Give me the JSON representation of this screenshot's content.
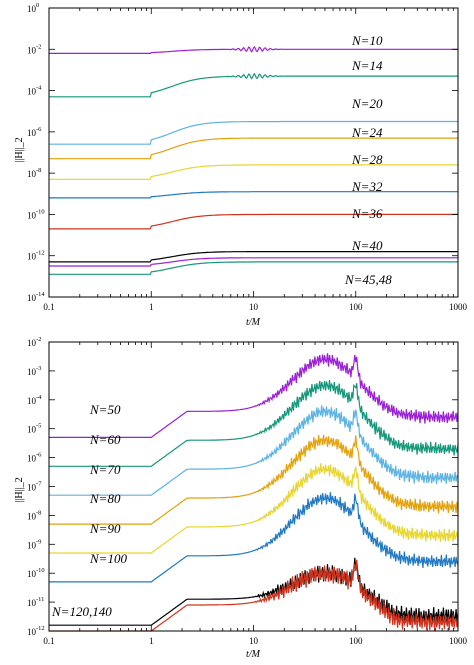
{
  "chart_data": [
    {
      "type": "line",
      "panel": "top",
      "xlabel": "t/M",
      "ylabel": "||H||_2",
      "x_scale": "log",
      "y_scale": "log",
      "xlim": [
        0.1,
        1000
      ],
      "ylim_exponent": [
        -14,
        0
      ],
      "x_ticks": [
        {
          "v": 0.1,
          "label": "0.1"
        },
        {
          "v": 1,
          "label": "1"
        },
        {
          "v": 10,
          "label": "10"
        },
        {
          "v": 100,
          "label": "100"
        },
        {
          "v": 1000,
          "label": "1000"
        }
      ],
      "y_tick_exponents": [
        0,
        -2,
        -4,
        -6,
        -8,
        -10,
        -12,
        -14
      ],
      "y_tick_base": "10",
      "series": [
        {
          "name": "N=10",
          "color": "#9b1fd6",
          "plateau_exp": -2.2,
          "final_exp": -2.0,
          "ripple": true
        },
        {
          "name": "N=14",
          "color": "#14967a",
          "plateau_exp": -4.3,
          "final_exp": -3.3,
          "ripple": true
        },
        {
          "name": "N=20",
          "color": "#5cb3e3",
          "plateau_exp": -6.6,
          "final_exp": -5.5,
          "ripple": false
        },
        {
          "name": "N=24",
          "color": "#e3a10c",
          "plateau_exp": -7.3,
          "final_exp": -6.3,
          "ripple": false
        },
        {
          "name": "N=28",
          "color": "#e8d531",
          "plateau_exp": -8.3,
          "final_exp": -7.6,
          "ripple": false
        },
        {
          "name": "N=32",
          "color": "#1f78c4",
          "plateau_exp": -9.2,
          "final_exp": -8.9,
          "ripple": false
        },
        {
          "name": "N=36",
          "color": "#d0331d",
          "plateau_exp": -10.7,
          "final_exp": -10.0,
          "ripple": false
        },
        {
          "name": "N=40",
          "color": "#000000",
          "plateau_exp": -12.3,
          "final_exp": -11.8,
          "ripple": false
        },
        {
          "name": "N=45",
          "color": "#9b1fd6",
          "plateau_exp": -12.5,
          "final_exp": -12.1,
          "ripple": false
        },
        {
          "name": "N=48",
          "color": "#14967a",
          "plateau_exp": -12.9,
          "final_exp": -12.3,
          "ripple": false
        }
      ],
      "annotations": [
        "N=10",
        "N=14",
        "N=20",
        "N=24",
        "N=28",
        "N=32",
        "N=36",
        "N=40",
        "N=45,48"
      ]
    },
    {
      "type": "line",
      "panel": "bottom",
      "xlabel": "t/M",
      "ylabel": "||H||_2",
      "x_scale": "log",
      "y_scale": "log",
      "xlim": [
        0.1,
        1000
      ],
      "ylim_exponent": [
        -12,
        -2
      ],
      "x_ticks": [
        {
          "v": 0.1,
          "label": "0.1"
        },
        {
          "v": 1,
          "label": "1"
        },
        {
          "v": 10,
          "label": "10"
        },
        {
          "v": 100,
          "label": "100"
        },
        {
          "v": 1000,
          "label": "1000"
        }
      ],
      "y_tick_exponents": [
        -2,
        -3,
        -4,
        -5,
        -6,
        -7,
        -8,
        -9,
        -10,
        -11,
        -12
      ],
      "y_tick_base": "10",
      "series": [
        {
          "name": "N=50",
          "color": "#9b1fd6",
          "plateau_exp": -5.3,
          "peak_exp": -2.6,
          "final_exp": -3.4
        },
        {
          "name": "N=60",
          "color": "#14967a",
          "plateau_exp": -6.3,
          "peak_exp": -3.5,
          "final_exp": -4.4
        },
        {
          "name": "N=70",
          "color": "#5cb3e3",
          "plateau_exp": -7.3,
          "peak_exp": -4.4,
          "final_exp": -5.3
        },
        {
          "name": "N=80",
          "color": "#e3a10c",
          "plateau_exp": -8.3,
          "peak_exp": -5.4,
          "final_exp": -6.3
        },
        {
          "name": "N=90",
          "color": "#e8d531",
          "plateau_exp": -9.3,
          "peak_exp": -6.4,
          "final_exp": -7.3
        },
        {
          "name": "N=100",
          "color": "#1f78c4",
          "plateau_exp": -10.3,
          "peak_exp": -7.4,
          "final_exp": -8.2
        },
        {
          "name": "N=120",
          "color": "#000000",
          "plateau_exp": -11.8,
          "peak_exp": -10.0,
          "final_exp": -11.2
        },
        {
          "name": "N=140",
          "color": "#d0331d",
          "plateau_exp": -12.0,
          "peak_exp": -10.0,
          "final_exp": -11.2
        }
      ],
      "annotations": [
        "N=50",
        "N=60",
        "N=70",
        "N=80",
        "N=90",
        "N=100",
        "N=120,140"
      ]
    }
  ]
}
